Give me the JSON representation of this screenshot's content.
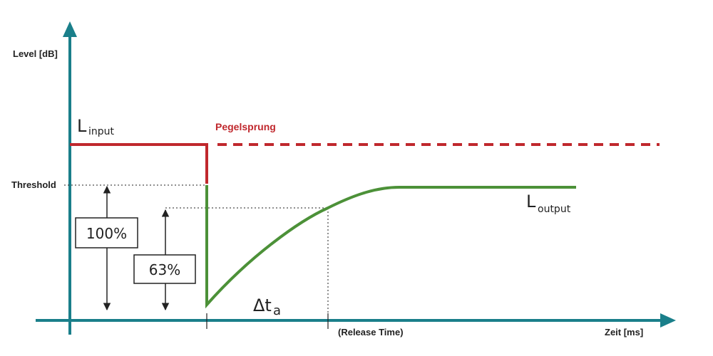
{
  "labels": {
    "y_axis": "Level [dB]",
    "x_axis": "Zeit [ms]",
    "threshold": "Threshold",
    "level_jump": "Pegelsprung",
    "input_main": "L",
    "input_sub": "input",
    "output_main": "L",
    "output_sub": "output",
    "box_100": "100%",
    "box_63": "63%",
    "delta_main": "Δt",
    "delta_sub": "a",
    "release_time": "(Release Time)"
  },
  "colors": {
    "axis": "#1a7f8a",
    "input": "#c0282d",
    "output": "#4c9138",
    "guide": "#222222"
  }
}
